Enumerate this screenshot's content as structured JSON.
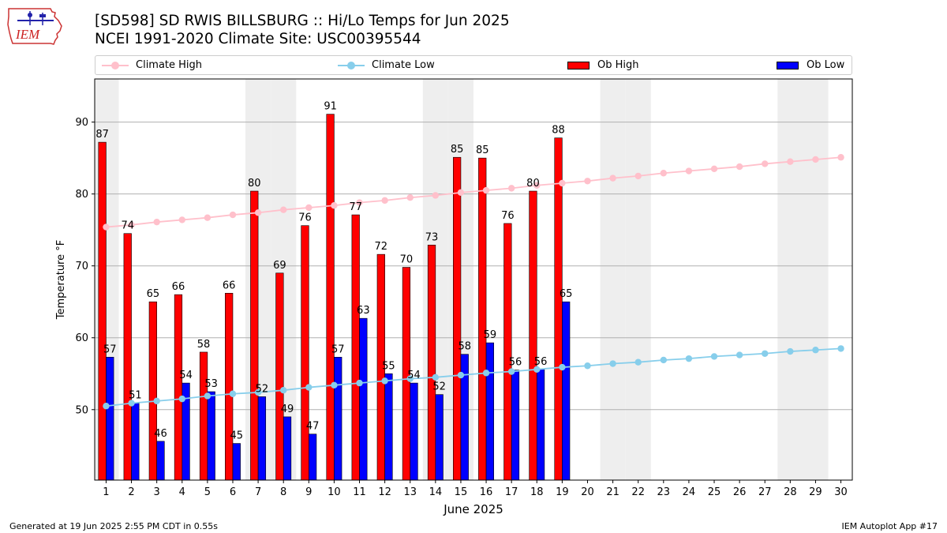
{
  "header": {
    "title_line1": "[SD598] SD RWIS BILLSBURG :: Hi/Lo Temps for Jun 2025",
    "title_line2": "NCEI 1991-2020 Climate Site: USC00395544"
  },
  "logo": {
    "text": "IEM"
  },
  "legend": {
    "climate_high": "Climate High",
    "climate_low": "Climate Low",
    "ob_high": "Ob High",
    "ob_low": "Ob Low"
  },
  "footer": {
    "generated": "Generated at 19 Jun 2025 2:55 PM CDT in 0.55s",
    "app": "IEM Autoplot App #17"
  },
  "colors": {
    "climate_high": "#ffc0cb",
    "climate_low": "#87ceeb",
    "ob_high": "#ff0000",
    "ob_low": "#0000ff",
    "weekend_shade": "#eeeeee",
    "grid": "#b0b0b0"
  },
  "chart_data": {
    "type": "bar",
    "xlabel": "June 2025",
    "ylabel": "Temperature °F",
    "xlim": [
      0.55,
      30.45
    ],
    "ylim": [
      40.2,
      96
    ],
    "yticks": [
      50,
      60,
      70,
      80,
      90
    ],
    "grid": "horizontal",
    "legend_position": "top",
    "days": [
      1,
      2,
      3,
      4,
      5,
      6,
      7,
      8,
      9,
      10,
      11,
      12,
      13,
      14,
      15,
      16,
      17,
      18,
      19,
      20,
      21,
      22,
      23,
      24,
      25,
      26,
      27,
      28,
      29,
      30
    ],
    "weekend_days": [
      1,
      7,
      8,
      14,
      15,
      21,
      22,
      28,
      29
    ],
    "series": [
      {
        "name": "Ob High",
        "kind": "bar",
        "values": [
          87.2,
          74.5,
          65.0,
          66.0,
          58.0,
          66.2,
          80.4,
          69.0,
          75.6,
          91.1,
          77.1,
          71.6,
          69.8,
          72.9,
          85.1,
          85.0,
          75.9,
          80.4,
          87.8
        ]
      },
      {
        "name": "Ob Low",
        "kind": "bar",
        "values": [
          57.3,
          50.9,
          45.6,
          53.7,
          52.5,
          45.3,
          51.8,
          49.0,
          46.6,
          57.3,
          62.7,
          55.0,
          53.7,
          52.1,
          57.7,
          59.3,
          55.5,
          55.6,
          65.0
        ]
      },
      {
        "name": "Climate High",
        "kind": "line",
        "values": [
          75.4,
          75.7,
          76.1,
          76.4,
          76.7,
          77.1,
          77.4,
          77.8,
          78.1,
          78.4,
          78.8,
          79.1,
          79.5,
          79.8,
          80.2,
          80.5,
          80.8,
          81.2,
          81.5,
          81.8,
          82.2,
          82.5,
          82.9,
          83.2,
          83.5,
          83.8,
          84.2,
          84.5,
          84.8,
          85.1
        ]
      },
      {
        "name": "Climate Low",
        "kind": "line",
        "values": [
          50.5,
          50.9,
          51.2,
          51.5,
          51.9,
          52.2,
          52.4,
          52.7,
          53.1,
          53.4,
          53.7,
          54.0,
          54.3,
          54.5,
          54.8,
          55.1,
          55.3,
          55.6,
          55.9,
          56.1,
          56.4,
          56.6,
          56.9,
          57.1,
          57.4,
          57.6,
          57.8,
          58.1,
          58.3,
          58.5
        ]
      }
    ],
    "high_labels": [
      "87",
      "74",
      "65",
      "66",
      "58",
      "66",
      "80",
      "69",
      "76",
      "91",
      "77",
      "72",
      "70",
      "73",
      "85",
      "85",
      "76",
      "80",
      "88"
    ],
    "low_labels": [
      "57",
      "51",
      "46",
      "54",
      "53",
      "45",
      "52",
      "49",
      "47",
      "57",
      "63",
      "55",
      "54",
      "52",
      "58",
      "59",
      "56",
      "56",
      "65"
    ]
  }
}
